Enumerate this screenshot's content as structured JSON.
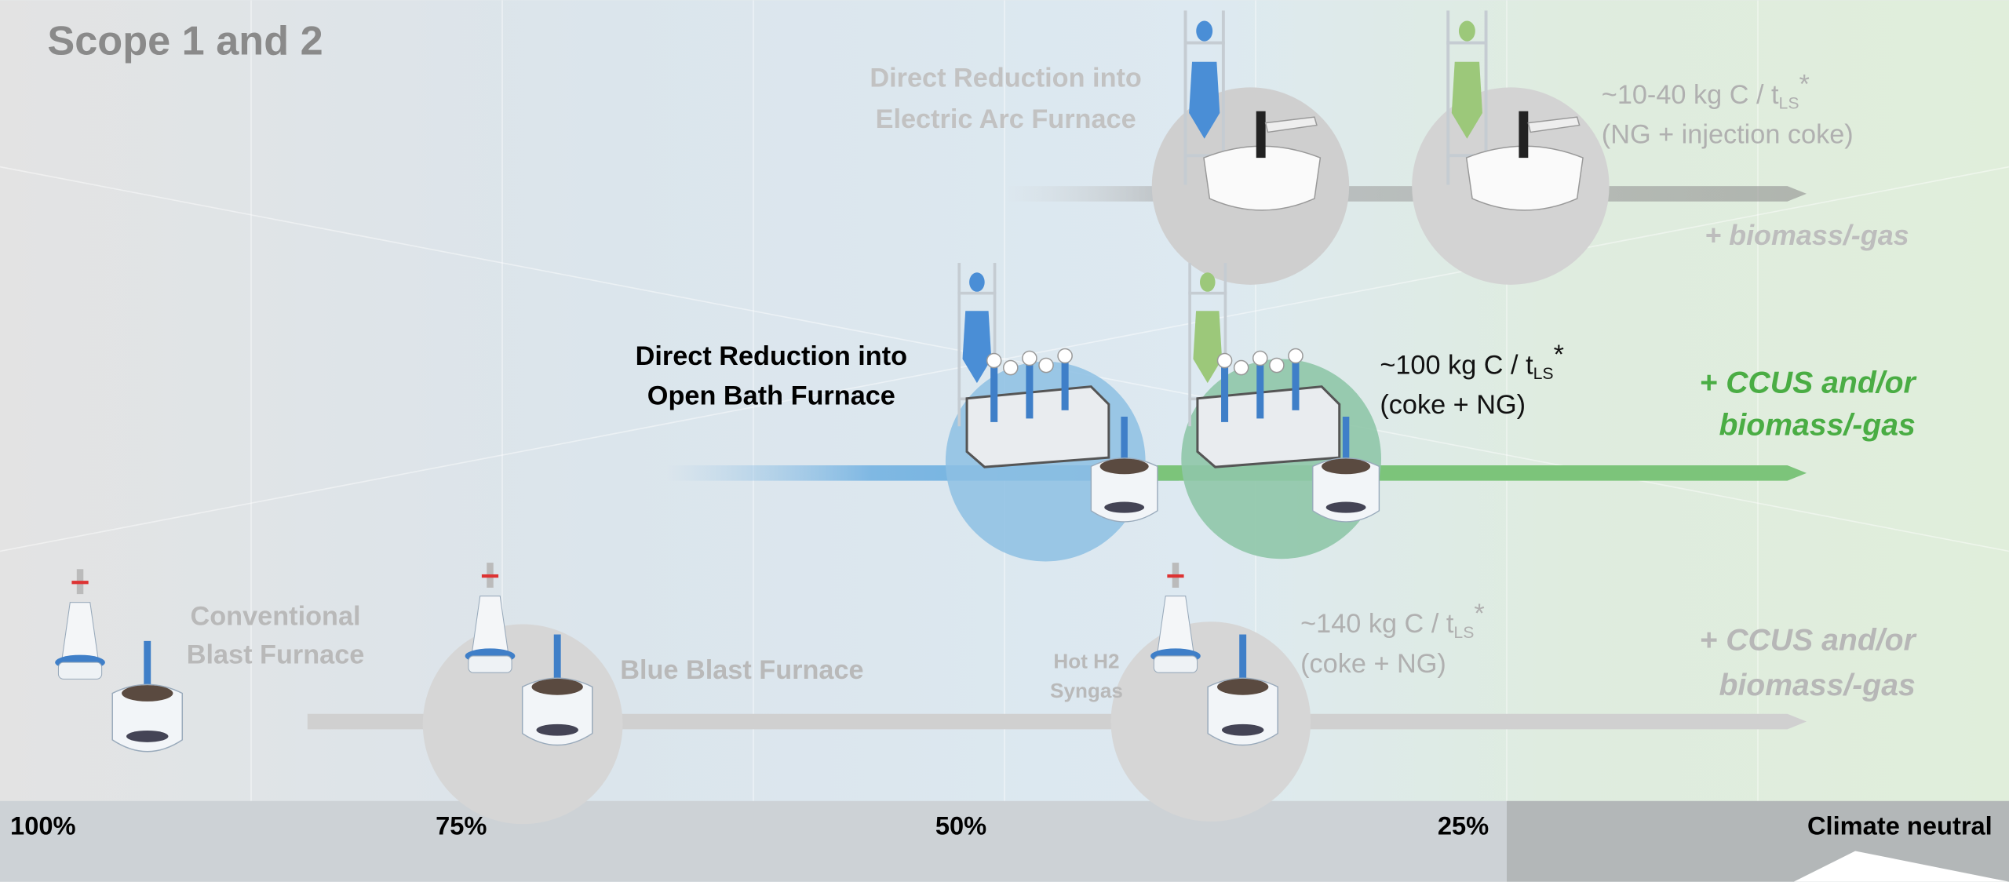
{
  "scope": "Scope 1 and 2",
  "routes": [
    {
      "label_lines": [
        "Direct Reduction into",
        "Electric Arc Furnace"
      ],
      "emission": {
        "text": "~10-40 kg C / t",
        "sub": "LS",
        "suffix": "*",
        "note": "(NG + injection coke)"
      },
      "option_lines": [
        "+ biomass/-gas"
      ]
    },
    {
      "label_lines": [
        "Direct Reduction into",
        "Open Bath Furnace"
      ],
      "emission": {
        "text": "~100 kg C / t",
        "sub": "LS",
        "suffix": "*",
        "note": "(coke + NG)"
      },
      "option_lines": [
        "+ CCUS and/or",
        "biomass/-gas"
      ]
    },
    {
      "label_lines": [
        "Conventional",
        "Blast Furnace"
      ],
      "blue_label": "Blue Blast Furnace",
      "hot_lines": [
        "Hot H2",
        "Syngas"
      ],
      "emission": {
        "text": "~140 kg C / t",
        "sub": "LS",
        "suffix": "*",
        "note": "(coke + NG)"
      },
      "option_lines": [
        "+ CCUS and/or",
        "biomass/-gas"
      ]
    }
  ],
  "axis_labels": [
    "100%",
    "75%",
    "50%",
    "25%",
    "Climate neutral"
  ]
}
